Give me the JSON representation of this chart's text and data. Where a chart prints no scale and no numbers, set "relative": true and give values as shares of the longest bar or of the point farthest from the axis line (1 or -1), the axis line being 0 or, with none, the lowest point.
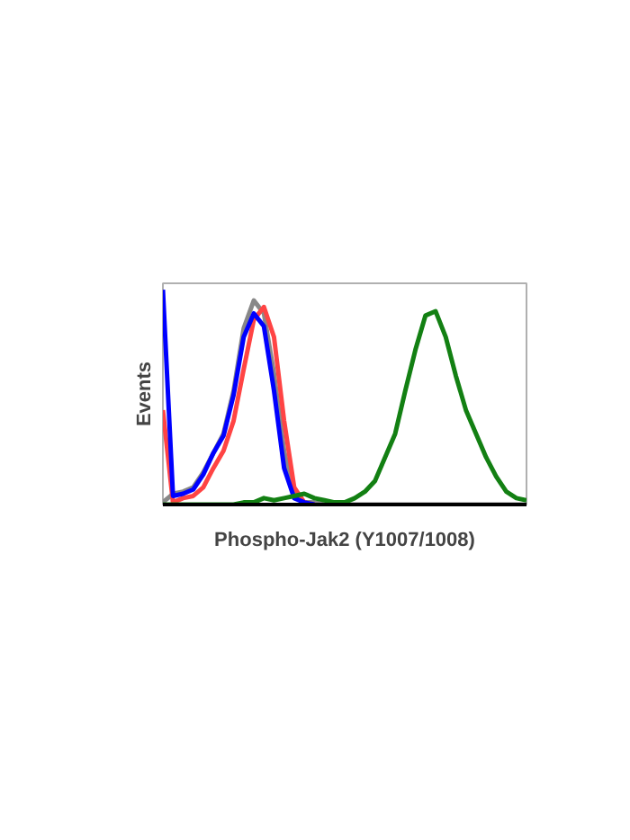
{
  "chart_data": {
    "type": "line",
    "relative": true,
    "xlabel": "Phospho-Jak2 (Y1007/1008)",
    "ylabel": "Events",
    "grid": false,
    "categories": [
      null,
      null,
      null,
      null,
      null,
      null,
      null,
      null,
      null,
      null,
      null,
      null,
      null,
      null,
      null,
      null,
      null,
      null,
      null,
      null,
      null,
      null,
      null,
      null,
      null,
      null,
      null,
      null,
      null,
      null,
      null,
      null,
      null,
      null,
      null,
      null,
      null
    ],
    "series": [
      {
        "color": "#888888",
        "values": [
          0.01,
          0.05,
          0.06,
          0.08,
          0.15,
          0.24,
          0.33,
          0.53,
          0.82,
          0.95,
          0.89,
          0.61,
          0.25,
          0.04,
          0.01,
          0.01,
          0,
          0,
          0,
          0,
          0,
          0,
          0,
          0,
          0,
          0,
          0,
          0,
          0,
          0,
          0,
          0,
          0,
          0,
          0,
          0,
          0
        ]
      },
      {
        "color": "#ff4444",
        "values": [
          0.44,
          0.01,
          0.03,
          0.04,
          0.08,
          0.17,
          0.25,
          0.39,
          0.63,
          0.86,
          0.92,
          0.78,
          0.39,
          0.08,
          0.01,
          0,
          null,
          null,
          null,
          null,
          null,
          null,
          null,
          null,
          null,
          null,
          null,
          null,
          null,
          null,
          null,
          null,
          null,
          null,
          null,
          null,
          null
        ]
      },
      {
        "color": "#0000ff",
        "values": [
          1.0,
          0.04,
          0.05,
          0.07,
          0.14,
          0.24,
          0.32,
          0.51,
          0.78,
          0.89,
          0.83,
          0.53,
          0.17,
          0.03,
          0.01,
          0,
          null,
          null,
          null,
          null,
          null,
          null,
          null,
          null,
          null,
          null,
          null,
          null,
          null,
          null,
          null,
          null,
          null,
          null,
          null,
          null,
          null
        ]
      },
      {
        "color": "#138013",
        "values": [
          0,
          0,
          0,
          0,
          0,
          0,
          0,
          0,
          0.01,
          0.01,
          0.03,
          0.02,
          0.03,
          0.04,
          0.05,
          0.03,
          0.02,
          0.01,
          0.01,
          0.03,
          0.06,
          0.11,
          0.22,
          0.33,
          0.53,
          0.72,
          0.88,
          0.9,
          0.78,
          0.6,
          0.44,
          0.33,
          0.22,
          0.13,
          0.06,
          0.03,
          0.02
        ]
      }
    ]
  }
}
